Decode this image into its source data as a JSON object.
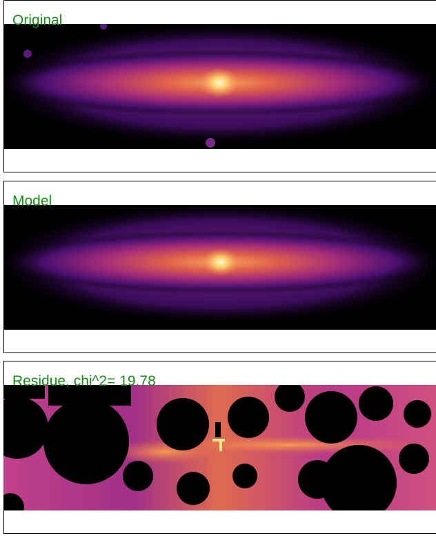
{
  "panels": [
    {
      "title": "Original"
    },
    {
      "title": "Model"
    },
    {
      "title": "Residue, chi^2= 19.78"
    }
  ]
}
